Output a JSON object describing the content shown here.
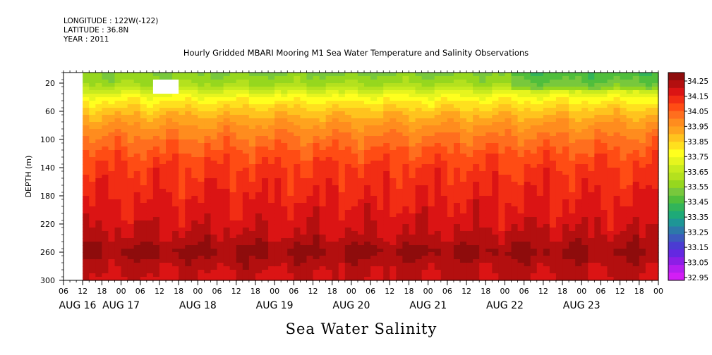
{
  "header": {
    "longitude": "LONGITUDE : 122W(-122)",
    "latitude": "LATITUDE : 36.8N",
    "year": "YEAR : 2011"
  },
  "chart_data": {
    "type": "heatmap",
    "title": "Hourly Gridded MBARI Mooring M1 Sea Water Temperature and Salinity Observations",
    "xlabel": "Sea Water Salinity",
    "ylabel": "DEPTH (m)",
    "ylim": [
      300,
      5
    ],
    "y_ticks": [
      20,
      60,
      100,
      140,
      180,
      220,
      260,
      300
    ],
    "x_hour_ticks": [
      "06",
      "12",
      "18",
      "00",
      "06",
      "12",
      "18",
      "00",
      "06",
      "12",
      "18",
      "00",
      "06",
      "12",
      "18",
      "00",
      "06",
      "12",
      "18",
      "00",
      "06",
      "12",
      "18",
      "00",
      "06",
      "12",
      "18",
      "00",
      "06",
      "12",
      "18",
      "00"
    ],
    "x_day_labels": [
      "AUG 16",
      "AUG 17",
      "AUG 18",
      "AUG 19",
      "AUG 20",
      "AUG 21",
      "AUG 22",
      "AUG 23"
    ],
    "x_start_hour": 6,
    "data_start_hour": 12,
    "total_hours": 186,
    "missing_block": {
      "hour_from": 28,
      "hour_to": 36,
      "depth_from": 15,
      "depth_to": 35
    },
    "colorbar": {
      "labels": [
        "34.25",
        "34.15",
        "34.05",
        "33.95",
        "33.85",
        "33.75",
        "33.65",
        "33.55",
        "33.45",
        "33.35",
        "33.25",
        "33.15",
        "33.05",
        "32.95"
      ],
      "colors": [
        "#8e0c0c",
        "#b30f0f",
        "#db1414",
        "#f22d14",
        "#ff4c14",
        "#ff6e1e",
        "#ff8c1e",
        "#ffa31e",
        "#ffc31e",
        "#ffe01e",
        "#ffff1e",
        "#e6f51e",
        "#c8eb1e",
        "#b4e11e",
        "#96d71e",
        "#78c83c",
        "#50be3c",
        "#32b45a",
        "#1eaa78",
        "#1e9696",
        "#2d78aa",
        "#3c5abe",
        "#4b3cd2",
        "#6428e1",
        "#8c1ee6",
        "#b41ef0",
        "#d21ef5"
      ]
    },
    "depth_profile": [
      {
        "depth": 5,
        "salinity": 33.52
      },
      {
        "depth": 20,
        "salinity": 33.56
      },
      {
        "depth": 40,
        "salinity": 33.74
      },
      {
        "depth": 60,
        "salinity": 33.85
      },
      {
        "depth": 80,
        "salinity": 33.93
      },
      {
        "depth": 100,
        "salinity": 33.99
      },
      {
        "depth": 120,
        "salinity": 34.04
      },
      {
        "depth": 140,
        "salinity": 34.08
      },
      {
        "depth": 180,
        "salinity": 34.12
      },
      {
        "depth": 220,
        "salinity": 34.16
      },
      {
        "depth": 240,
        "salinity": 34.19
      },
      {
        "depth": 260,
        "salinity": 34.24
      },
      {
        "depth": 280,
        "salinity": 34.19
      },
      {
        "depth": 300,
        "salinity": 34.17
      }
    ],
    "grid": false
  }
}
